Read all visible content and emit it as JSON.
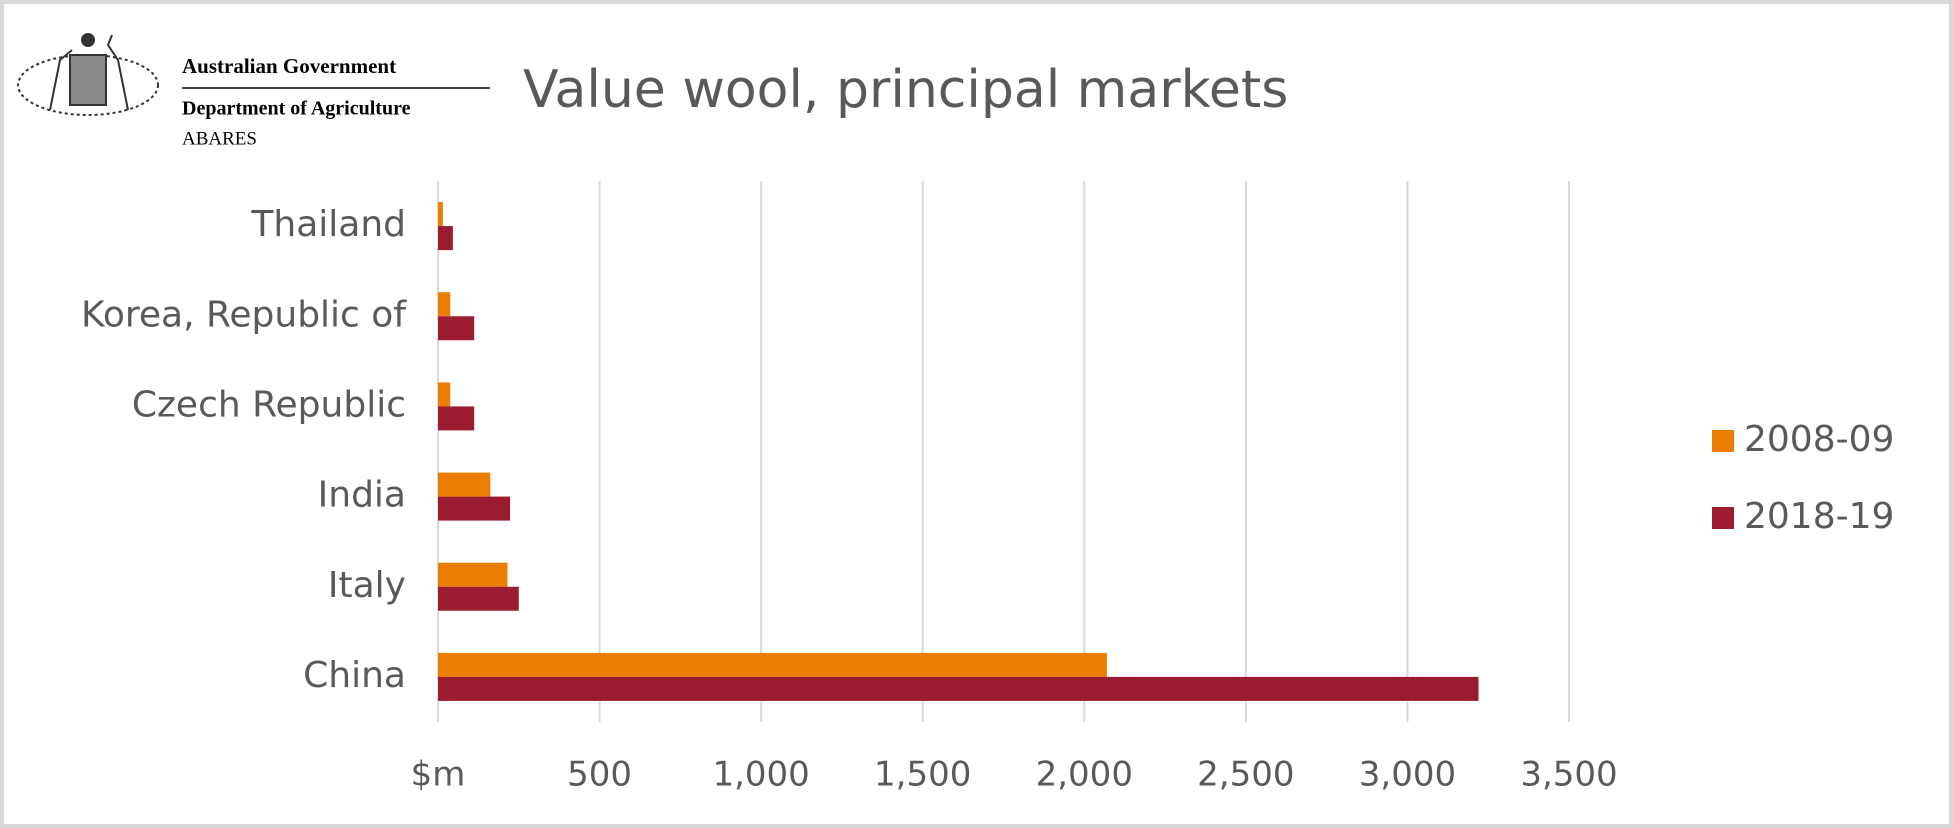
{
  "logo_lines": [
    "Australian Government",
    "Department of Agriculture",
    "ABARES"
  ],
  "chart_data": {
    "type": "hbar",
    "title": "Value wool, principal markets",
    "categories": [
      "Thailand",
      "Korea, Republic of",
      "Czech Republic",
      "India",
      "Italy",
      "China"
    ],
    "series": [
      {
        "name": "2008-09",
        "color": "#ed7d00",
        "values": [
          15,
          38,
          38,
          162,
          215,
          2070
        ]
      },
      {
        "name": "2018-19",
        "color": "#9b1b30",
        "values": [
          46,
          112,
          112,
          223,
          250,
          3220
        ]
      }
    ],
    "xlim": [
      0,
      3500
    ],
    "xticks": [
      {
        "value": 0,
        "label": "$m"
      },
      500,
      {
        "value": 1000,
        "label": "1,000"
      },
      {
        "value": 1500,
        "label": "1,500"
      },
      {
        "value": 2000,
        "label": "2,000"
      },
      {
        "value": 2500,
        "label": "2,500"
      },
      {
        "value": 3000,
        "label": "3,000"
      },
      {
        "value": 3500,
        "label": "3,500"
      }
    ],
    "grid": true,
    "legend": "right"
  }
}
